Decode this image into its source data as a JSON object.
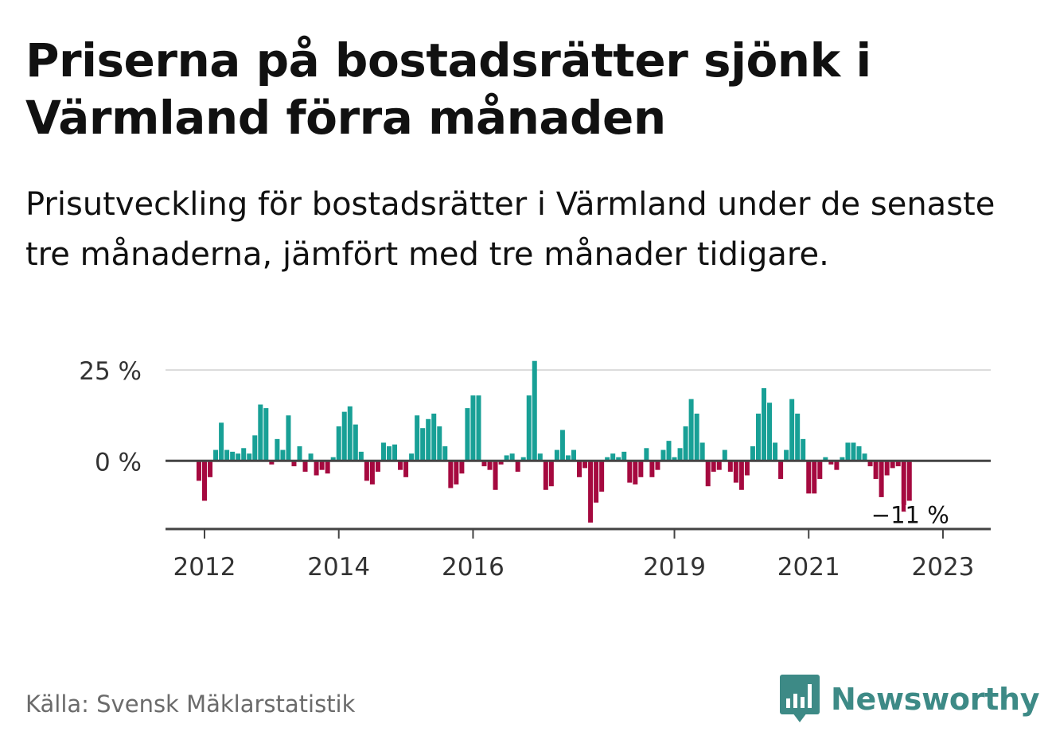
{
  "title": "Priserna på bostadsrätter sjönk i Värmland förra månaden",
  "subtitle": "Prisutveckling för bostadsrätter i Värmland under de senaste tre månaderna, jämfört med tre månader tidigare.",
  "source": "Källa: Svensk Mäklarstatistik",
  "logo": {
    "text": "Newsworthy",
    "icon": "bar-chart-speech-bubble-icon"
  },
  "colors": {
    "positive": "#18a096",
    "negative": "#a5093f",
    "axis": "#444444",
    "grid": "#d9d9d9",
    "brand": "#3d8a86"
  },
  "chart_data": {
    "type": "bar",
    "title": "",
    "xlabel": "",
    "ylabel": "",
    "ylim": [
      -19,
      27
    ],
    "grid": true,
    "y_ticks": [
      {
        "value": 0,
        "label": "0 %"
      },
      {
        "value": 25,
        "label": "25 %"
      }
    ],
    "x_ticks": [
      {
        "value": "2012-01",
        "label": "2012"
      },
      {
        "value": "2014-01",
        "label": "2014"
      },
      {
        "value": "2016-01",
        "label": "2016"
      },
      {
        "value": "2019-01",
        "label": "2019"
      },
      {
        "value": "2021-01",
        "label": "2021"
      },
      {
        "value": "2023-01",
        "label": "2023"
      }
    ],
    "start": "2011-12",
    "last_label": "−11 %",
    "values": [
      -5.5,
      -11,
      -4.5,
      3,
      10.5,
      3,
      2.5,
      2,
      3.5,
      2,
      7,
      15.5,
      14.5,
      -1,
      6,
      3,
      12.5,
      -1.5,
      4,
      -3,
      2,
      -4,
      -2.5,
      -3.5,
      1,
      9.5,
      13.5,
      15,
      10,
      2.5,
      -5.5,
      -6.5,
      -3,
      5,
      4,
      4.5,
      -2.5,
      -4.5,
      2,
      12.5,
      9,
      11.5,
      13,
      9.5,
      4,
      -7.5,
      -6.5,
      -3.5,
      14.5,
      18,
      18,
      -1.5,
      -2.5,
      -8,
      -1,
      1.5,
      2,
      -3,
      1,
      18,
      27.5,
      2,
      -8,
      -7,
      3,
      8.5,
      1.5,
      3,
      -4.5,
      -2,
      -17,
      -11.5,
      -8.5,
      1,
      2,
      1,
      2.5,
      -6,
      -6.5,
      -4.5,
      3.5,
      -4.5,
      -2.5,
      3,
      5.5,
      1,
      3.5,
      9.5,
      17,
      13,
      5,
      -7,
      -3,
      -2.5,
      3,
      -3,
      -6,
      -8,
      -4,
      4,
      13,
      20,
      16,
      5,
      -5,
      3,
      17,
      13,
      6,
      -9,
      -9,
      -5,
      1,
      -1,
      -2.5,
      1,
      5,
      5,
      4,
      2,
      -1.5,
      -5,
      -10,
      -4,
      -2,
      -1.5,
      -14,
      -11
    ]
  }
}
